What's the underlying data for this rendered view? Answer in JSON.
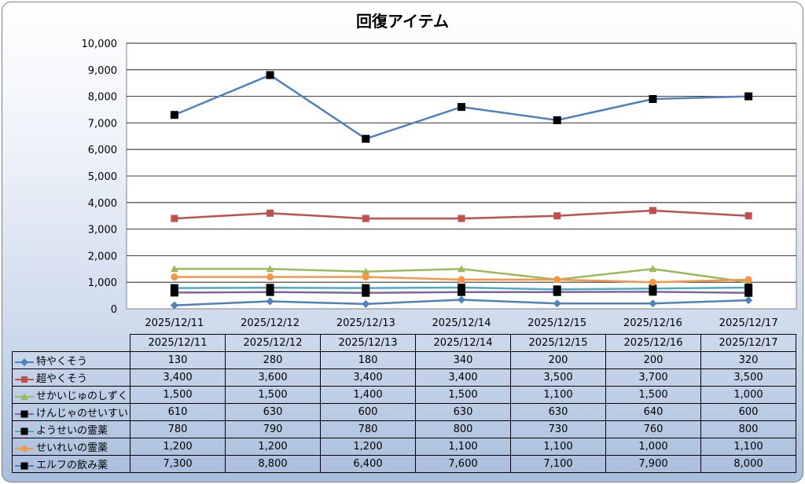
{
  "chart_data": {
    "type": "line",
    "title": "回復アイテム",
    "categories": [
      "2025/12/11",
      "2025/12/12",
      "2025/12/13",
      "2025/12/14",
      "2025/12/15",
      "2025/12/16",
      "2025/12/17"
    ],
    "ylim": [
      0,
      10000
    ],
    "yticks": [
      "0",
      "1,000",
      "2,000",
      "3,000",
      "4,000",
      "5,000",
      "6,000",
      "7,000",
      "8,000",
      "9,000",
      "10,000"
    ],
    "grid": true,
    "legend": "table-below",
    "series": [
      {
        "name": "特やくそう",
        "color": "#4f81bd",
        "marker": "diamond",
        "values": [
          130,
          280,
          180,
          340,
          200,
          200,
          320
        ],
        "labels": [
          "130",
          "280",
          "180",
          "340",
          "200",
          "200",
          "320"
        ]
      },
      {
        "name": "超やくそう",
        "color": "#c0504d",
        "marker": "square",
        "values": [
          3400,
          3600,
          3400,
          3400,
          3500,
          3700,
          3500
        ],
        "labels": [
          "3,400",
          "3,600",
          "3,400",
          "3,400",
          "3,500",
          "3,700",
          "3,500"
        ]
      },
      {
        "name": "せかいじゅのしずく",
        "color": "#9bbb59",
        "marker": "triangle",
        "values": [
          1500,
          1500,
          1400,
          1500,
          1100,
          1500,
          1000
        ],
        "labels": [
          "1,500",
          "1,500",
          "1,400",
          "1,500",
          "1,100",
          "1,500",
          "1,000"
        ]
      },
      {
        "name": "けんじゃのせいすい",
        "color": "#8064a2",
        "marker": "square-black",
        "values": [
          610,
          630,
          600,
          630,
          630,
          640,
          600
        ],
        "labels": [
          "610",
          "630",
          "600",
          "630",
          "630",
          "640",
          "600"
        ]
      },
      {
        "name": "ようせいの霊薬",
        "color": "#4bacc6",
        "marker": "square-black",
        "values": [
          780,
          790,
          780,
          800,
          730,
          760,
          800
        ],
        "labels": [
          "780",
          "790",
          "780",
          "800",
          "730",
          "760",
          "800"
        ]
      },
      {
        "name": "せいれいの霊薬",
        "color": "#f79646",
        "marker": "circle",
        "values": [
          1200,
          1200,
          1200,
          1100,
          1100,
          1000,
          1100
        ],
        "labels": [
          "1,200",
          "1,200",
          "1,200",
          "1,100",
          "1,100",
          "1,000",
          "1,100"
        ]
      },
      {
        "name": "エルフの飲み薬",
        "color": "#4f81bd",
        "marker": "square-black",
        "values": [
          7300,
          8800,
          6400,
          7600,
          7100,
          7900,
          8000
        ],
        "labels": [
          "7,300",
          "8,800",
          "6,400",
          "7,600",
          "7,100",
          "7,900",
          "8,000"
        ]
      }
    ]
  }
}
